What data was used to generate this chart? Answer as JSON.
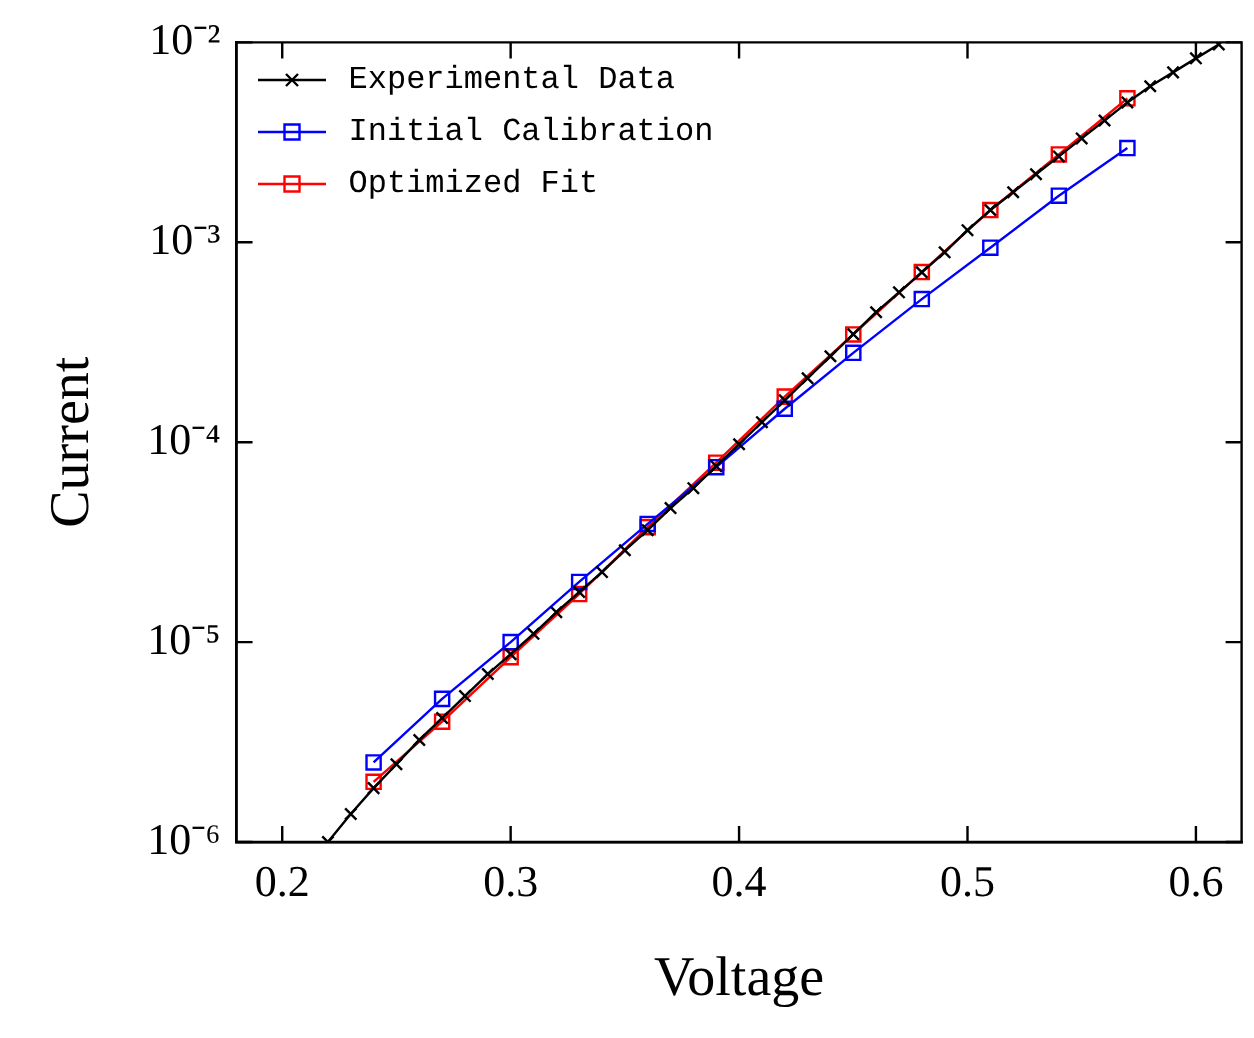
{
  "chart_data": {
    "type": "line",
    "xlabel": "Voltage",
    "ylabel": "Current",
    "log": "y",
    "grid": false,
    "legend": "top left",
    "xlim": [
      0.18,
      0.62
    ],
    "xticks": [
      0.2,
      0.3,
      0.4,
      0.5,
      0.6
    ],
    "ylim": [
      1e-06,
      0.01
    ],
    "yticks": [
      {
        "value": 1e-06,
        "label": "10⁻⁶"
      },
      {
        "value": 1e-05,
        "label": "10⁻⁵"
      },
      {
        "value": 0.0001,
        "label": "10⁻⁴"
      },
      {
        "value": 0.001,
        "label": "10⁻³"
      },
      {
        "value": 0.01,
        "label": "10⁻²"
      }
    ],
    "series": [
      {
        "name": "Experimental Data",
        "color": "#000000",
        "marker": "cross",
        "x": [
          0.22,
          0.23,
          0.24,
          0.25,
          0.26,
          0.27,
          0.28,
          0.29,
          0.3,
          0.31,
          0.32,
          0.33,
          0.34,
          0.35,
          0.36,
          0.37,
          0.38,
          0.39,
          0.4,
          0.41,
          0.42,
          0.43,
          0.44,
          0.45,
          0.46,
          0.47,
          0.48,
          0.49,
          0.5,
          0.51,
          0.52,
          0.53,
          0.54,
          0.55,
          0.56,
          0.57,
          0.58,
          0.59,
          0.6,
          0.61
        ],
        "values": [
          1e-06,
          1.38e-06,
          1.86e-06,
          2.45e-06,
          3.24e-06,
          4.17e-06,
          5.37e-06,
          6.92e-06,
          8.7e-06,
          1.1e-05,
          1.41e-05,
          1.78e-05,
          2.24e-05,
          2.88e-05,
          3.63e-05,
          4.68e-05,
          5.89e-05,
          7.59e-05,
          9.77e-05,
          0.000126,
          0.000162,
          0.000209,
          0.000269,
          0.000347,
          0.000447,
          0.000562,
          0.000708,
          0.000891,
          0.00115,
          0.00145,
          0.00178,
          0.00219,
          0.00269,
          0.00331,
          0.00407,
          0.00501,
          0.00603,
          0.00708,
          0.00832,
          0.00977
        ]
      },
      {
        "name": "Initial Calibration",
        "color": "#0000ff",
        "marker": "square",
        "x": [
          0.24,
          0.27,
          0.3,
          0.33,
          0.36,
          0.39,
          0.42,
          0.45,
          0.48,
          0.51,
          0.54,
          0.57
        ],
        "values": [
          2.5e-06,
          5.2e-06,
          1e-05,
          2e-05,
          3.9e-05,
          7.5e-05,
          0.000147,
          0.00028,
          0.00052,
          0.00094,
          0.00171,
          0.00296
        ]
      },
      {
        "name": "Optimized Fit",
        "color": "#ff0000",
        "marker": "square",
        "x": [
          0.24,
          0.27,
          0.3,
          0.33,
          0.36,
          0.39,
          0.42,
          0.45,
          0.48,
          0.51,
          0.54,
          0.57
        ],
        "values": [
          2e-06,
          4e-06,
          8.4e-06,
          1.74e-05,
          3.76e-05,
          7.9e-05,
          0.000169,
          0.000346,
          0.00071,
          0.00145,
          0.00275,
          0.00525
        ]
      }
    ]
  }
}
